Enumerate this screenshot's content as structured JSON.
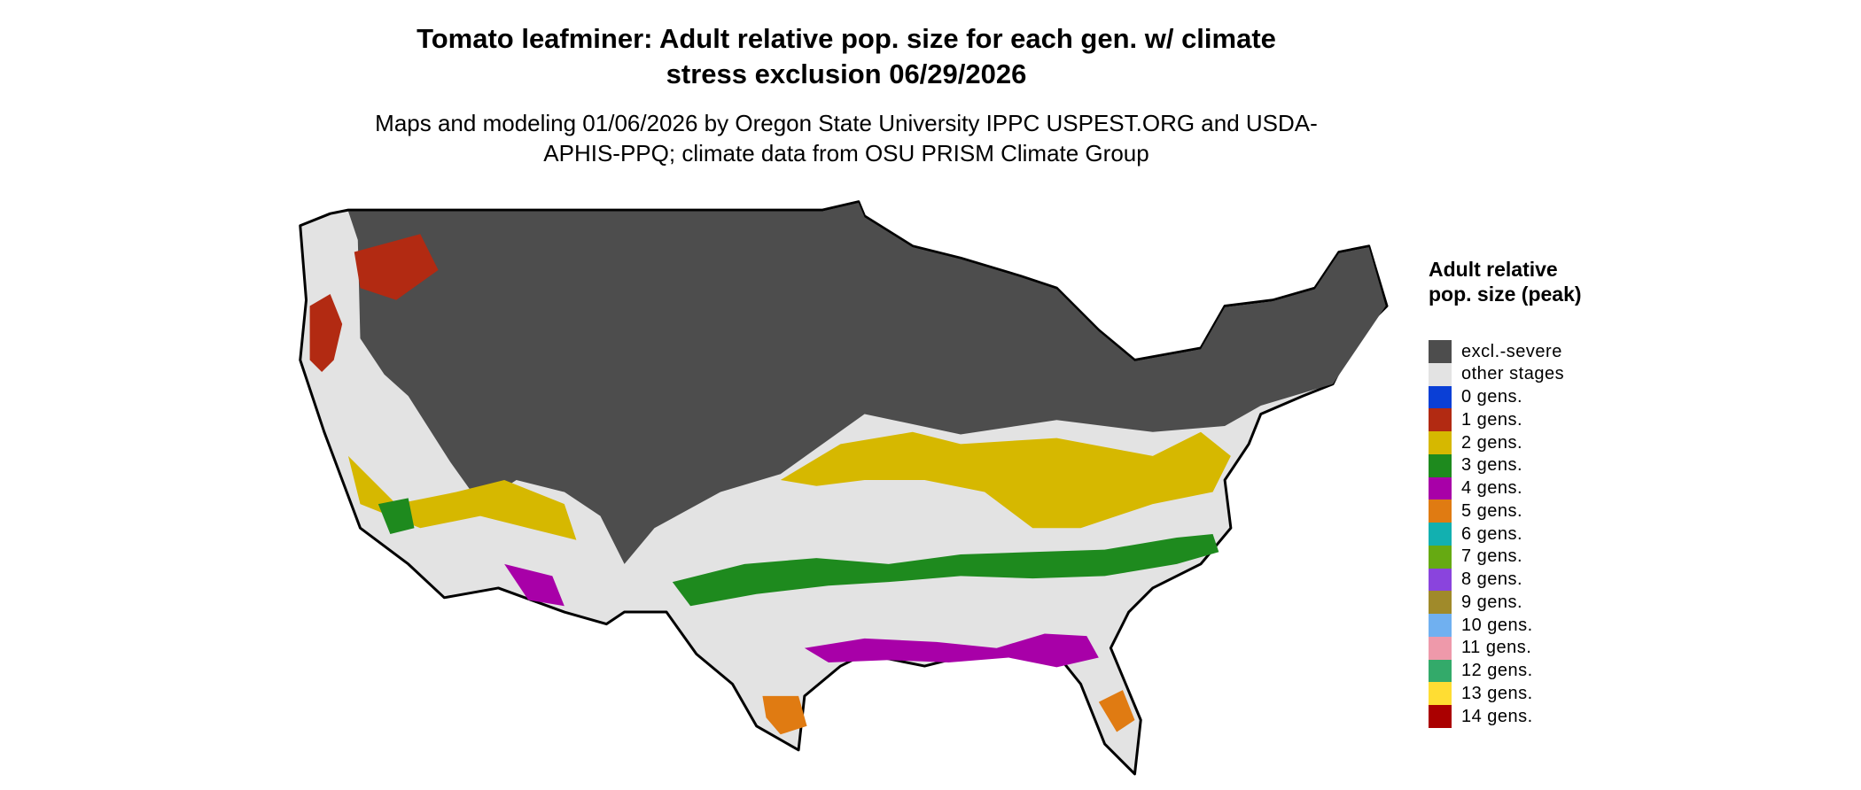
{
  "title": "Tomato leafminer: Adult relative pop. size for each gen. w/ climate stress exclusion 06/29/2026",
  "subtitle": "Maps and modeling 01/06/2026 by Oregon State University IPPC USPEST.ORG and USDA-APHIS-PPQ; climate data from OSU PRISM Climate Group",
  "legend": {
    "title": "Adult relative pop. size (peak)",
    "items": [
      {
        "label": "excl.-severe",
        "color": "#4d4d4d"
      },
      {
        "label": "other stages",
        "color": "#e3e3e3"
      },
      {
        "label": "0 gens.",
        "color": "#0a3fd6"
      },
      {
        "label": "1 gens.",
        "color": "#b22a12"
      },
      {
        "label": "2 gens.",
        "color": "#d6b800"
      },
      {
        "label": "3 gens.",
        "color": "#1e8a1e"
      },
      {
        "label": "4 gens.",
        "color": "#a800a8"
      },
      {
        "label": "5 gens.",
        "color": "#e07b12"
      },
      {
        "label": "6 gens.",
        "color": "#12b0b0"
      },
      {
        "label": "7 gens.",
        "color": "#66aa12"
      },
      {
        "label": "8 gens.",
        "color": "#8a44dd"
      },
      {
        "label": "9 gens.",
        "color": "#a08a2a"
      },
      {
        "label": "10 gens.",
        "color": "#70b0f0"
      },
      {
        "label": "11 gens.",
        "color": "#ee99aa"
      },
      {
        "label": "12 gens.",
        "color": "#33aa6a"
      },
      {
        "label": "13 gens.",
        "color": "#ffdd33"
      },
      {
        "label": "14 gens.",
        "color": "#aa0000"
      }
    ]
  }
}
